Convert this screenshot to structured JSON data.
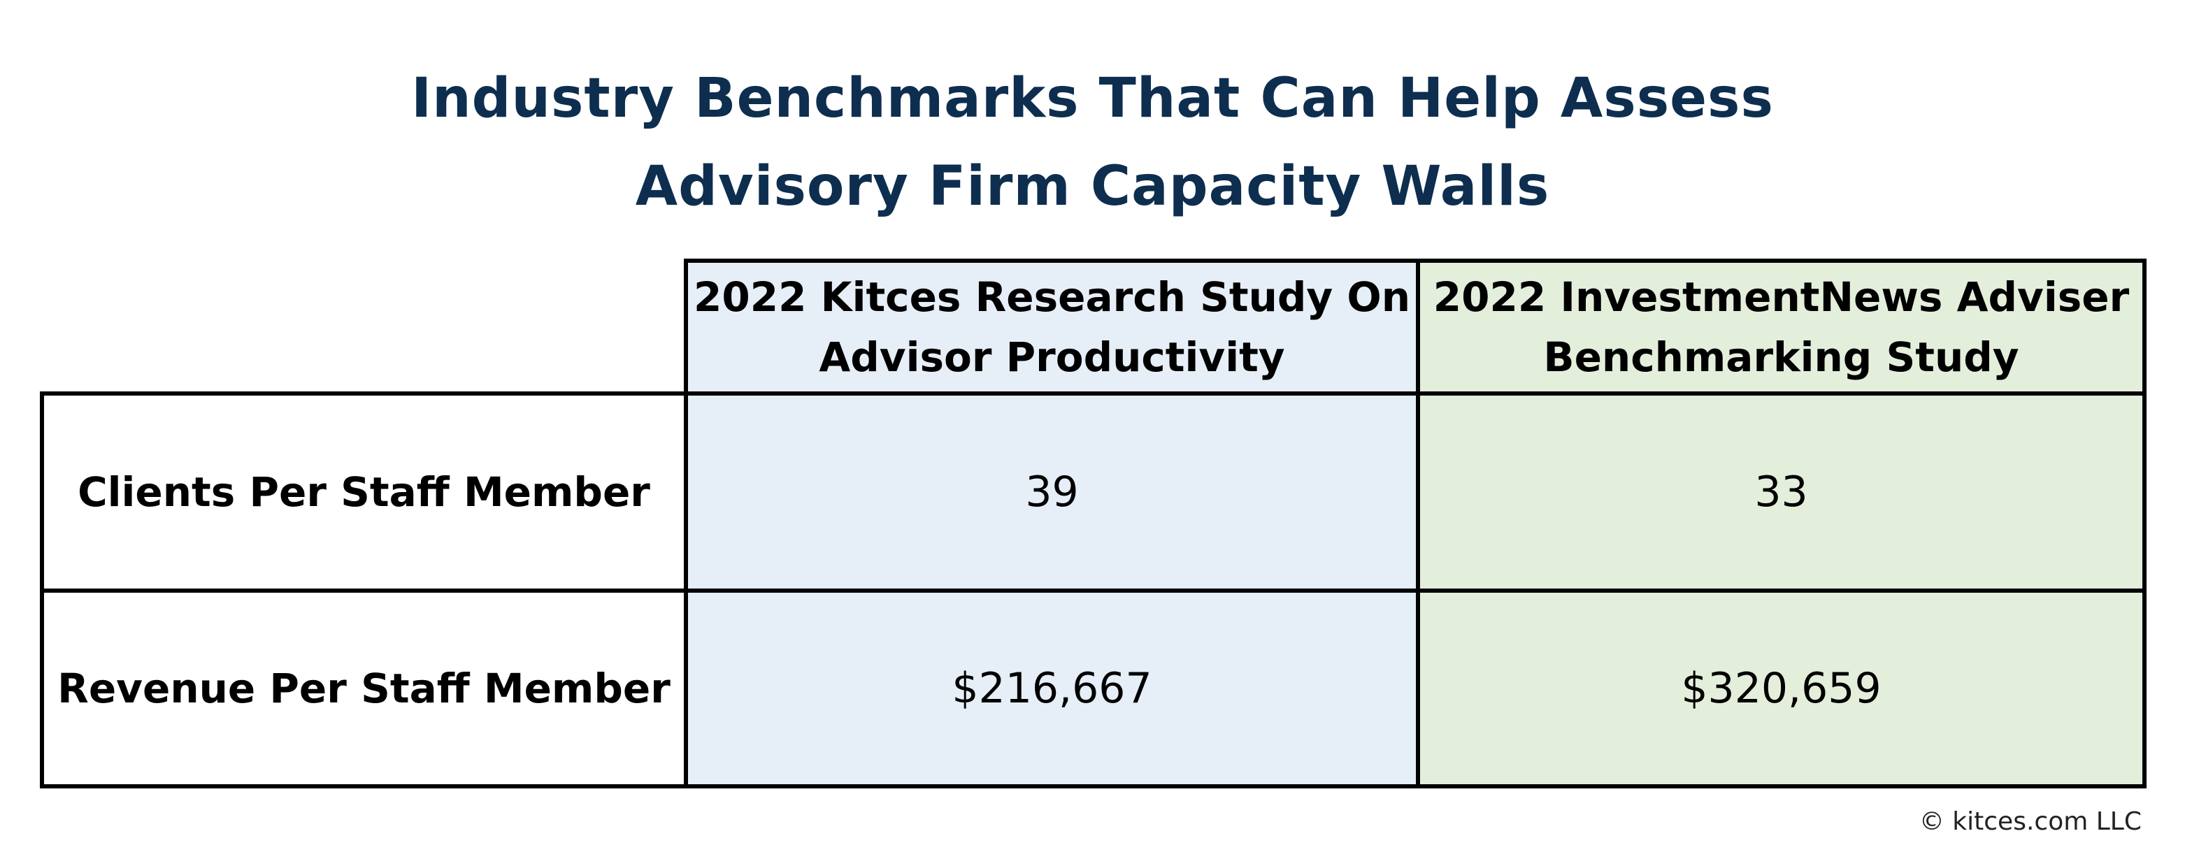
{
  "title": {
    "line1": "Industry Benchmarks That Can Help Assess",
    "line2": "Advisory Firm Capacity Walls"
  },
  "table": {
    "columns": [
      {
        "line1": "2022 Kitces Research Study On",
        "line2": "Advisor Productivity"
      },
      {
        "line1": "2022 InvestmentNews Adviser",
        "line2": "Benchmarking Study"
      }
    ],
    "rows": [
      {
        "label": "Clients Per Staff Member",
        "values": [
          "39",
          "33"
        ]
      },
      {
        "label": "Revenue Per Staff Member",
        "values": [
          "$216,667",
          "$320,659"
        ]
      }
    ]
  },
  "colors": {
    "title": "#0e2e4f",
    "kitces_column": "#e6eef7",
    "investmentnews_column": "#e3efdb",
    "border": "#000000"
  },
  "footer": {
    "copyright": "© kitces.com LLC"
  }
}
